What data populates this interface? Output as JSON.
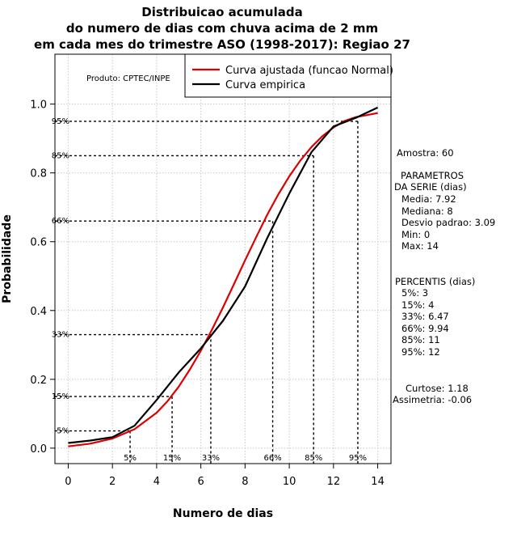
{
  "chart_data": {
    "type": "line",
    "title": [
      "Distribuicao acumulada",
      "do numero de dias com chuva acima de 2 mm",
      "em cada mes do trimestre ASO (1998-2017): Regiao 27"
    ],
    "xlabel": "Numero de dias",
    "ylabel": "Probabilidade",
    "xlim": [
      -0.6,
      14.6
    ],
    "ylim": [
      -0.045,
      1.145
    ],
    "x_ticks": [
      "0",
      "2",
      "4",
      "6",
      "8",
      "10",
      "12",
      "14"
    ],
    "y_ticks": [
      "0.0",
      "0.2",
      "0.4",
      "0.6",
      "0.8",
      "1.0"
    ],
    "product_label": "Produto: CPTEC/INPE",
    "legend": {
      "position": "top-right",
      "entries": [
        "Curva ajustada (funcao Normal)",
        "Curva empirica"
      ]
    },
    "colors": {
      "fitted": "#dd0000",
      "empirical": "#000000"
    },
    "series": [
      {
        "name": "Curva ajustada (funcao Normal)",
        "x": [
          0,
          1,
          2,
          3,
          4,
          4.5,
          5,
          5.5,
          6,
          6.5,
          7,
          7.5,
          8,
          8.5,
          9,
          9.5,
          10,
          10.5,
          11,
          11.5,
          12,
          12.5,
          13,
          13.5,
          14
        ],
        "values": [
          0.005,
          0.013,
          0.028,
          0.055,
          0.103,
          0.137,
          0.179,
          0.228,
          0.283,
          0.344,
          0.409,
          0.477,
          0.546,
          0.613,
          0.678,
          0.737,
          0.79,
          0.836,
          0.875,
          0.907,
          0.932,
          0.951,
          0.962,
          0.968,
          0.974
        ]
      },
      {
        "name": "Curva empirica",
        "x": [
          0,
          1,
          2,
          3,
          4,
          5,
          6,
          7,
          8,
          9,
          10,
          11,
          12,
          13,
          14
        ],
        "values": [
          0.015,
          0.022,
          0.032,
          0.065,
          0.14,
          0.22,
          0.29,
          0.37,
          0.47,
          0.61,
          0.74,
          0.86,
          0.935,
          0.96,
          0.99
        ]
      }
    ],
    "percentile_lines": [
      {
        "label": "5%",
        "y_label": "5%",
        "prob": 0.05,
        "x": 2.8
      },
      {
        "label": "15%",
        "y_label": "15%",
        "prob": 0.15,
        "x": 4.7
      },
      {
        "label": "33%",
        "y_label": "33%",
        "prob": 0.33,
        "x": 6.45
      },
      {
        "label": "66%",
        "y_label": "66%",
        "prob": 0.66,
        "x": 9.25
      },
      {
        "label": "85%",
        "y_label": "85%",
        "prob": 0.85,
        "x": 11.1
      },
      {
        "label": "95%",
        "y_label": "95%",
        "prob": 0.95,
        "x": 13.1
      }
    ]
  },
  "side_panel": {
    "sample": "Amostra: 60",
    "params_title_1": "PARAMETROS",
    "params_title_2": "DA SERIE (dias)",
    "params": [
      "Media: 7.92",
      "Mediana: 8",
      "Desvio padrao: 3.09",
      "Min: 0",
      "Max: 14"
    ],
    "percentis_title": "PERCENTIS (dias)",
    "percentis": [
      "5%: 3",
      "15%: 4",
      "33%: 6.47",
      "66%: 9.94",
      "85%: 11",
      "95%: 12"
    ],
    "kurtosis": "Curtose: 1.18",
    "skewness": "Assimetria: -0.06"
  }
}
